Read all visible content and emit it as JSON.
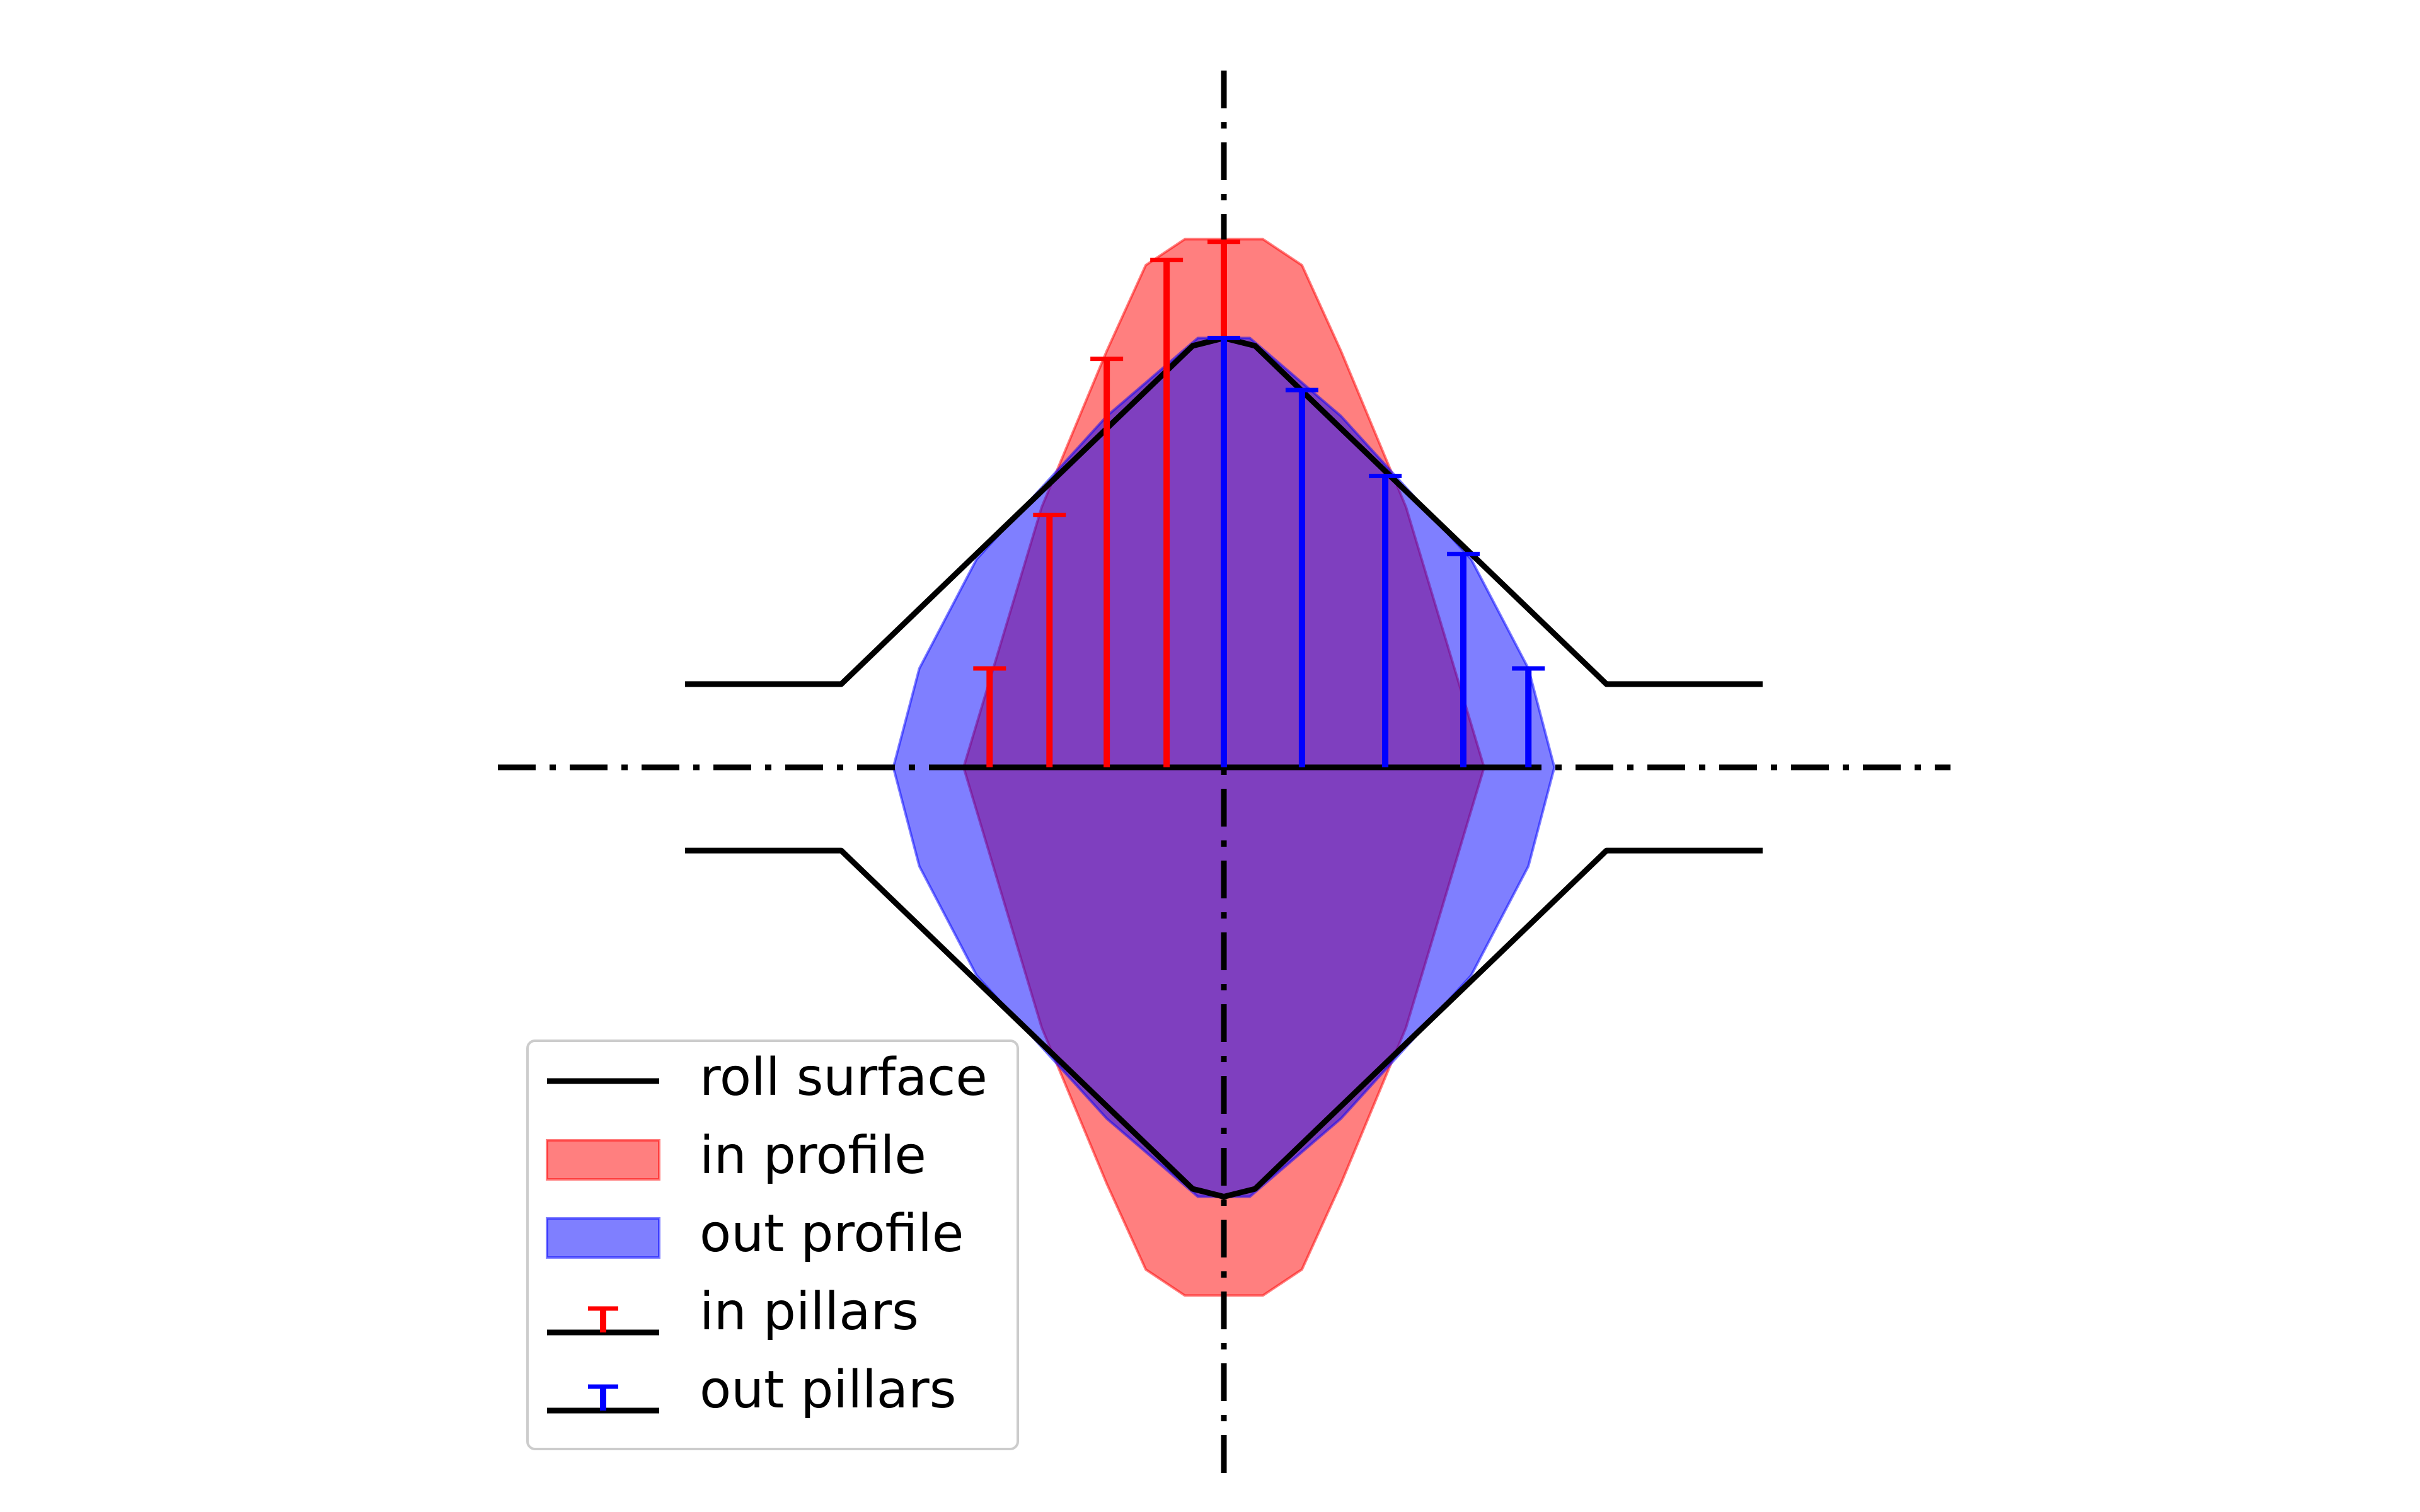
{
  "colors": {
    "roll_surface": "#000000",
    "in_profile_fill": "#ff0000",
    "out_profile_fill": "#0000ff",
    "in_pillars": "#ff0000",
    "out_pillars": "#0000ff",
    "axis_lines": "#000000"
  },
  "legend": {
    "placement": "lower-left",
    "items": [
      {
        "label": "roll surface",
        "kind": "line"
      },
      {
        "label": "in profile",
        "kind": "patch-red"
      },
      {
        "label": "out profile",
        "kind": "patch-blue"
      },
      {
        "label": "in pillars",
        "kind": "pillar-red"
      },
      {
        "label": "out pillars",
        "kind": "pillar-blue"
      }
    ]
  },
  "chart_data": {
    "type": "diagram",
    "axes_visible": false,
    "pillars_in": {
      "x": [
        -0.9,
        -0.67,
        -0.45,
        -0.22,
        0.0
      ],
      "height": [
        0.38,
        0.97,
        1.57,
        1.95,
        2.02
      ]
    },
    "pillars_out": {
      "x": [
        0.0,
        0.3,
        0.62,
        0.92,
        1.17
      ],
      "height": [
        1.65,
        1.45,
        1.12,
        0.82,
        0.38
      ]
    },
    "in_profile": {
      "x": [
        -1.0,
        -0.7,
        -0.45,
        -0.3,
        -0.15,
        0.0,
        0.15,
        0.3,
        0.45,
        0.7,
        1.0
      ],
      "y": [
        0.0,
        1.0,
        1.6,
        1.93,
        2.03,
        2.03,
        2.03,
        1.93,
        1.6,
        1.0,
        0.0
      ]
    },
    "out_profile": {
      "x": [
        -1.27,
        -1.17,
        -0.95,
        -0.45,
        -0.1,
        0.0,
        0.1,
        0.45,
        0.95,
        1.17,
        1.27
      ],
      "y": [
        0.0,
        0.38,
        0.8,
        1.35,
        1.65,
        1.65,
        1.65,
        1.35,
        0.8,
        0.38,
        0.0
      ]
    },
    "roll_surface": {
      "x": [
        -2.07,
        -1.47,
        -0.12,
        0.0,
        0.12,
        1.47,
        2.07
      ],
      "y": [
        0.32,
        0.32,
        1.62,
        1.65,
        1.62,
        0.32,
        0.32
      ]
    }
  }
}
